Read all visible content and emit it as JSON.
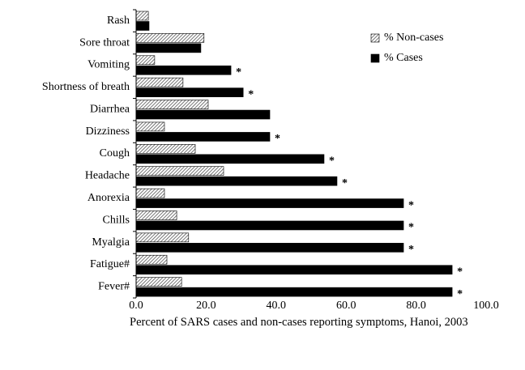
{
  "chart_data": {
    "type": "hbar",
    "xlabel": "Percent of SARS cases and non-cases reporting symptoms, Hanoi, 2003",
    "categories": [
      "Rash",
      "Sore throat",
      "Vomiting",
      "Shortness of breath",
      "Diarrhea",
      "Dizziness",
      "Cough",
      "Headache",
      "Anorexia",
      "Chills",
      "Myalgia",
      "Fatigue#",
      "Fever#"
    ],
    "series": [
      {
        "name": "% Non-cases",
        "color": "#555555",
        "pattern": "hatch",
        "values": [
          3.5,
          19.4,
          5.3,
          13.4,
          20.6,
          8.1,
          16.9,
          25.0,
          8.1,
          11.6,
          15.0,
          8.8,
          13.0
        ]
      },
      {
        "name": "% Cases",
        "color": "#000000",
        "values": [
          3.7,
          18.5,
          27.1,
          30.6,
          38.2,
          38.2,
          53.7,
          57.4,
          76.4,
          76.4,
          76.4,
          90.3,
          90.3
        ]
      }
    ],
    "significance": [
      null,
      null,
      "*",
      "*",
      null,
      "*",
      "*",
      "*",
      "*",
      "*",
      "*",
      "*",
      "*"
    ],
    "xlim": [
      0,
      100
    ],
    "xticks": [
      {
        "value": 0,
        "label": "0.0"
      },
      {
        "value": 20,
        "label": "20.0"
      },
      {
        "value": 40,
        "label": "40.0"
      },
      {
        "value": 60,
        "label": "60.0"
      },
      {
        "value": 80,
        "label": "80.0"
      },
      {
        "value": 100,
        "label": "100.0"
      }
    ],
    "grid": false,
    "legend": "top-right"
  }
}
